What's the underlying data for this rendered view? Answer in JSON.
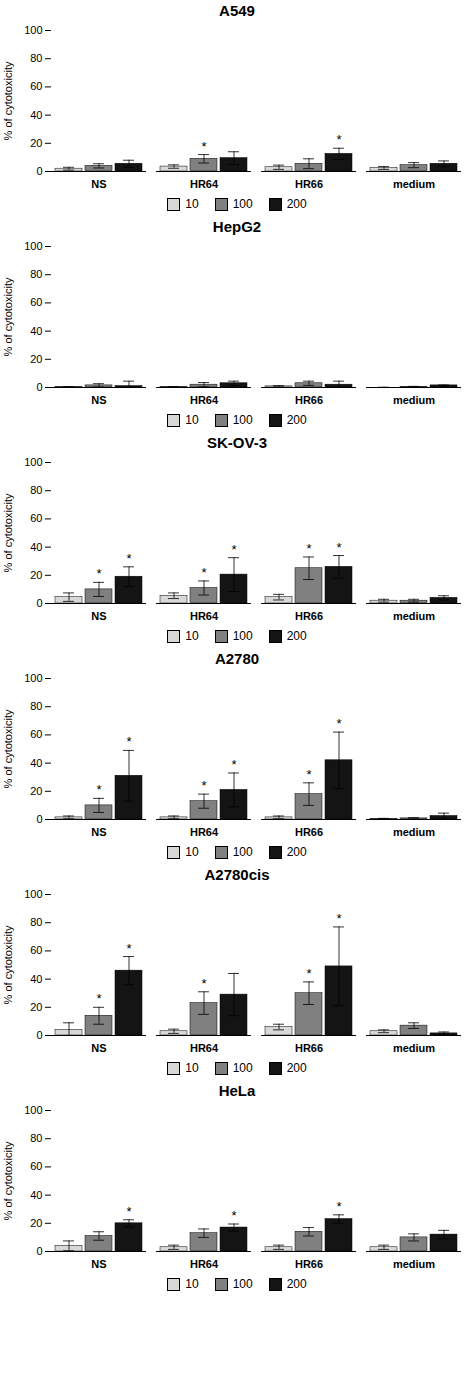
{
  "chart_data": [
    {
      "type": "bar",
      "title": "A549",
      "categories": [
        "NS",
        "HR64",
        "HR66",
        "medium"
      ],
      "series": [
        {
          "name": "10",
          "color": "#d8d8d8",
          "values": [
            2.0,
            3.5,
            3.0,
            2.5
          ],
          "errors": [
            1.0,
            1.2,
            1.5,
            1.0
          ],
          "significance": [
            null,
            null,
            null,
            null
          ]
        },
        {
          "name": "100",
          "color": "#808080",
          "values": [
            4.0,
            9.0,
            5.5,
            4.5
          ],
          "errors": [
            1.5,
            3.0,
            3.5,
            1.8
          ],
          "significance": [
            null,
            "*",
            null,
            null
          ]
        },
        {
          "name": "200",
          "color": "#141414",
          "values": [
            5.5,
            9.5,
            12.5,
            5.5
          ],
          "errors": [
            2.5,
            4.5,
            4.0,
            2.0
          ],
          "significance": [
            null,
            null,
            "*",
            null
          ]
        }
      ],
      "y_label": "% of cytotoxicity",
      "ylim": [
        0,
        100
      ],
      "yticks": [
        0,
        20,
        40,
        60,
        80,
        100
      ],
      "grid": false,
      "legend": "bottom"
    },
    {
      "type": "bar",
      "title": "HepG2",
      "categories": [
        "NS",
        "HR64",
        "HR66",
        "medium"
      ],
      "series": [
        {
          "name": "10",
          "color": "#d8d8d8",
          "values": [
            0.3,
            0.3,
            0.8,
            0.0
          ],
          "errors": [
            0.3,
            0.3,
            0.5,
            0.2
          ],
          "significance": [
            null,
            null,
            null,
            null
          ]
        },
        {
          "name": "100",
          "color": "#808080",
          "values": [
            1.5,
            2.0,
            3.0,
            0.3
          ],
          "errors": [
            1.2,
            1.5,
            1.5,
            0.5
          ],
          "significance": [
            null,
            null,
            null,
            null
          ]
        },
        {
          "name": "200",
          "color": "#141414",
          "values": [
            1.0,
            3.0,
            2.0,
            1.5
          ],
          "errors": [
            3.5,
            1.5,
            2.5,
            0.3
          ],
          "significance": [
            null,
            null,
            null,
            null
          ]
        }
      ],
      "y_label": "% of cytotoxicity",
      "ylim": [
        0,
        100
      ],
      "yticks": [
        0,
        20,
        40,
        60,
        80,
        100
      ],
      "grid": false,
      "legend": "bottom"
    },
    {
      "type": "bar",
      "title": "SK-OV-3",
      "categories": [
        "NS",
        "HR64",
        "HR66",
        "medium"
      ],
      "series": [
        {
          "name": "10",
          "color": "#d8d8d8",
          "values": [
            4.5,
            5.5,
            4.5,
            2.0
          ],
          "errors": [
            3.0,
            2.0,
            2.0,
            1.0
          ],
          "significance": [
            null,
            null,
            null,
            null
          ]
        },
        {
          "name": "100",
          "color": "#808080",
          "values": [
            10.0,
            11.0,
            25.0,
            2.0
          ],
          "errors": [
            5.0,
            5.0,
            8.0,
            1.0
          ],
          "significance": [
            "*",
            "*",
            "*",
            null
          ]
        },
        {
          "name": "200",
          "color": "#141414",
          "values": [
            19.0,
            20.5,
            26.0,
            4.0
          ],
          "errors": [
            7.0,
            12.0,
            8.0,
            1.5
          ],
          "significance": [
            "*",
            "*",
            "*",
            null
          ]
        }
      ],
      "y_label": "% of cytotoxicity",
      "ylim": [
        0,
        100
      ],
      "yticks": [
        0,
        20,
        40,
        60,
        80,
        100
      ],
      "grid": false,
      "legend": "bottom"
    },
    {
      "type": "bar",
      "title": "A2780",
      "categories": [
        "NS",
        "HR64",
        "HR66",
        "medium"
      ],
      "series": [
        {
          "name": "10",
          "color": "#d8d8d8",
          "values": [
            1.5,
            1.5,
            1.5,
            0.5
          ],
          "errors": [
            1.0,
            1.0,
            1.0,
            0.3
          ],
          "significance": [
            null,
            null,
            null,
            null
          ]
        },
        {
          "name": "100",
          "color": "#808080",
          "values": [
            10.0,
            13.0,
            18.0,
            0.8
          ],
          "errors": [
            5.0,
            5.0,
            8.0,
            0.5
          ],
          "significance": [
            "*",
            "*",
            "*",
            null
          ]
        },
        {
          "name": "200",
          "color": "#141414",
          "values": [
            31.0,
            21.0,
            42.0,
            2.5
          ],
          "errors": [
            18.0,
            12.0,
            20.0,
            2.0
          ],
          "significance": [
            "*",
            "*",
            "*",
            null
          ]
        }
      ],
      "y_label": "% of cytotoxicity",
      "ylim": [
        0,
        100
      ],
      "yticks": [
        0,
        20,
        40,
        60,
        80,
        100
      ],
      "grid": false,
      "legend": "bottom"
    },
    {
      "type": "bar",
      "title": "A2780cis",
      "categories": [
        "NS",
        "HR64",
        "HR66",
        "medium"
      ],
      "series": [
        {
          "name": "10",
          "color": "#d8d8d8",
          "values": [
            4.0,
            3.0,
            6.0,
            3.0
          ],
          "errors": [
            5.0,
            1.5,
            2.0,
            1.0
          ],
          "significance": [
            null,
            null,
            null,
            null
          ]
        },
        {
          "name": "100",
          "color": "#808080",
          "values": [
            14.0,
            23.0,
            30.0,
            7.0
          ],
          "errors": [
            6.0,
            8.0,
            8.0,
            2.0
          ],
          "significance": [
            "*",
            "*",
            "*",
            null
          ]
        },
        {
          "name": "200",
          "color": "#141414",
          "values": [
            46.0,
            29.0,
            49.0,
            1.5
          ],
          "errors": [
            10.0,
            15.0,
            28.0,
            1.0
          ],
          "significance": [
            "*",
            null,
            "*",
            null
          ]
        }
      ],
      "y_label": "% of cytotoxicity",
      "ylim": [
        0,
        100
      ],
      "yticks": [
        0,
        20,
        40,
        60,
        80,
        100
      ],
      "grid": false,
      "legend": "bottom"
    },
    {
      "type": "bar",
      "title": "HeLa",
      "categories": [
        "NS",
        "HR64",
        "HR66",
        "medium"
      ],
      "series": [
        {
          "name": "10",
          "color": "#d8d8d8",
          "values": [
            4.0,
            3.0,
            3.0,
            3.0
          ],
          "errors": [
            3.5,
            1.5,
            1.5,
            1.5
          ],
          "significance": [
            null,
            null,
            null,
            null
          ]
        },
        {
          "name": "100",
          "color": "#808080",
          "values": [
            11.0,
            13.0,
            14.0,
            10.0
          ],
          "errors": [
            3.0,
            3.0,
            3.0,
            2.5
          ],
          "significance": [
            null,
            null,
            null,
            null
          ]
        },
        {
          "name": "200",
          "color": "#141414",
          "values": [
            20.0,
            17.0,
            23.0,
            12.0
          ],
          "errors": [
            2.5,
            2.5,
            3.0,
            3.0
          ],
          "significance": [
            "*",
            "*",
            "*",
            null
          ]
        }
      ],
      "y_label": "% of cytotoxicity",
      "ylim": [
        0,
        100
      ],
      "yticks": [
        0,
        20,
        40,
        60,
        80,
        100
      ],
      "grid": false,
      "legend": "bottom"
    }
  ]
}
